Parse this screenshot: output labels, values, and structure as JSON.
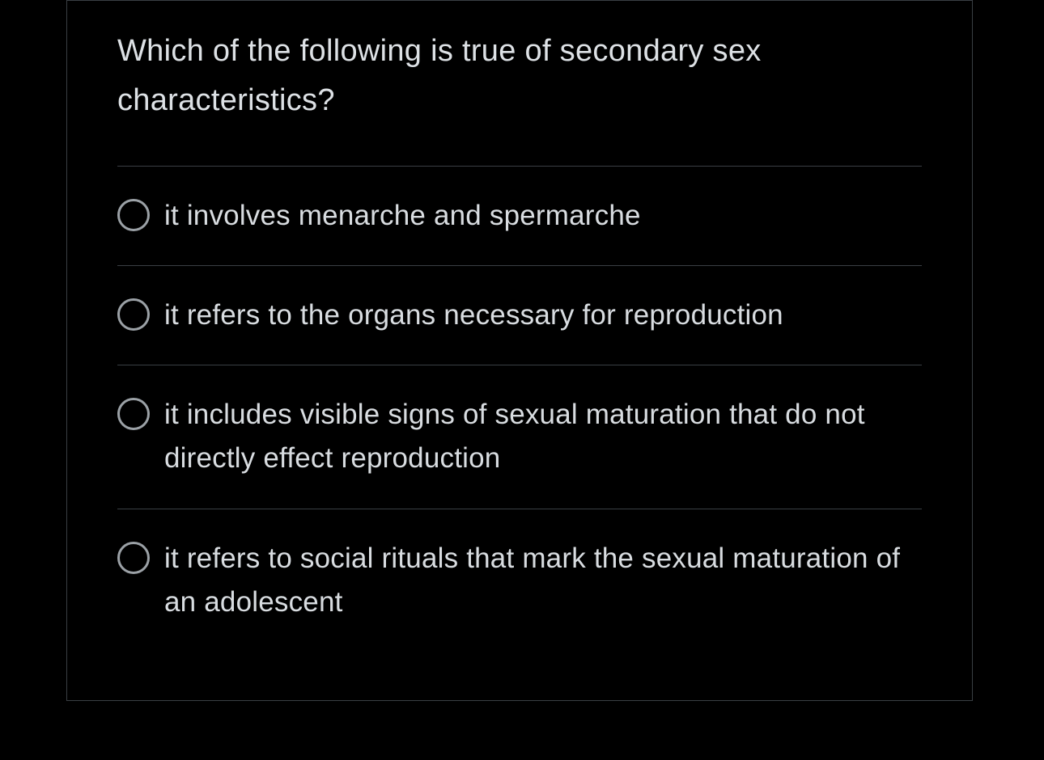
{
  "question": {
    "text": "Which of the following is true of secondary sex characteristics?",
    "options": [
      {
        "label": "it involves menarche and spermarche"
      },
      {
        "label": "it refers to the organs necessary for reproduction"
      },
      {
        "label": "it includes visible signs of sexual maturation that do not directly effect reproduction"
      },
      {
        "label": "it refers to social rituals that mark the sexual maturation of an adolescent"
      }
    ]
  },
  "colors": {
    "background": "#000000",
    "text": "#d8dce0",
    "border": "#3a3f44",
    "radio_border": "#9ba1a6"
  }
}
